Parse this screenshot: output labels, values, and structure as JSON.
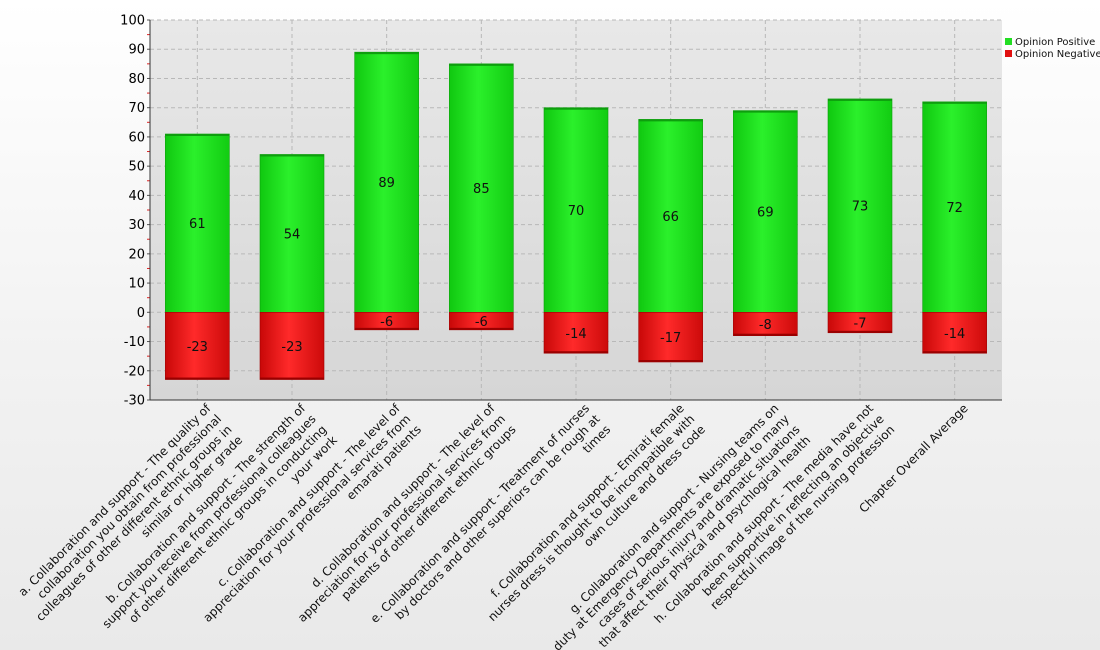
{
  "chart_data": {
    "type": "bar",
    "stacked": true,
    "ylim": [
      -30,
      100
    ],
    "yticks": [
      -30,
      -20,
      -10,
      0,
      10,
      20,
      30,
      40,
      50,
      60,
      70,
      80,
      90,
      100
    ],
    "grid": true,
    "legend_position": "top-right",
    "categories": [
      "a. Collaboration and support - The quality of collaboration you obtain from professional colleagues of other different ethnic groups in similar or higher grade",
      "b. Collaboration and support - The strength of support you receive from professional colleagues of other different ethnic groups in conducting your work",
      "c. Collaboration and support - The level of appreciation for your professional services from emarati patients",
      "d. Collaboration and support - The level of appreciation for your professional services from patients of other different ethnic groups",
      "e. Collaboration and support - Treatment of nurses by doctors and other superiors can be rough at times",
      "f. Collaboration and support - Emirati female nurses dress is thought to be incompatible with own culture and dress code",
      "g. Collaboration and support - Nursing teams on duty at Emergency Departments are exposed to many cases of serious injury and dramatic situations that affect their physical and psychlogical health",
      "h. Collaboration and support - The media have not been supportive in reflecting an objective respectful image of the nursing profession",
      "Chapter Overall Average"
    ],
    "category_lines": [
      [
        "a. Collaboration and support - The quality of",
        "collaboration you obtain from professional",
        "colleagues of other different ethnic groups in",
        "similar or higher grade"
      ],
      [
        "b. Collaboration and support - The strength of",
        "support you receive from professional colleagues",
        "of other different ethnic groups in conducting",
        "your work"
      ],
      [
        "c. Collaboration and support - The level of",
        "appreciation for your professional services from",
        "emarati patients"
      ],
      [
        "d. Collaboration and support - The level of",
        "appreciation for your professional services from",
        "patients of other different ethnic groups"
      ],
      [
        "e. Collaboration and support - Treatment of nurses",
        "by doctors and other superiors can be rough at",
        "times"
      ],
      [
        "f. Collaboration and support - Emirati female",
        "nurses dress is thought to be incompatible with",
        "own culture and dress code"
      ],
      [
        "g. Collaboration and support - Nursing teams on",
        "duty at Emergency Departments are exposed to many",
        "cases of serious injury and dramatic situations",
        "that affect their physical and psychlogical health"
      ],
      [
        "h. Collaboration and support - The media have not",
        "been supportive in reflecting an objective",
        "respectful image of the nursing profession"
      ],
      [
        "Chapter Overall Average"
      ]
    ],
    "series": [
      {
        "name": "Opinion Positive",
        "color": "#22dd22",
        "values": [
          61,
          54,
          89,
          85,
          70,
          66,
          69,
          73,
          72
        ]
      },
      {
        "name": "Opinion Negative",
        "color": "#e11010",
        "values": [
          -23,
          -23,
          -6,
          -6,
          -14,
          -17,
          -8,
          -7,
          -14
        ]
      }
    ]
  }
}
